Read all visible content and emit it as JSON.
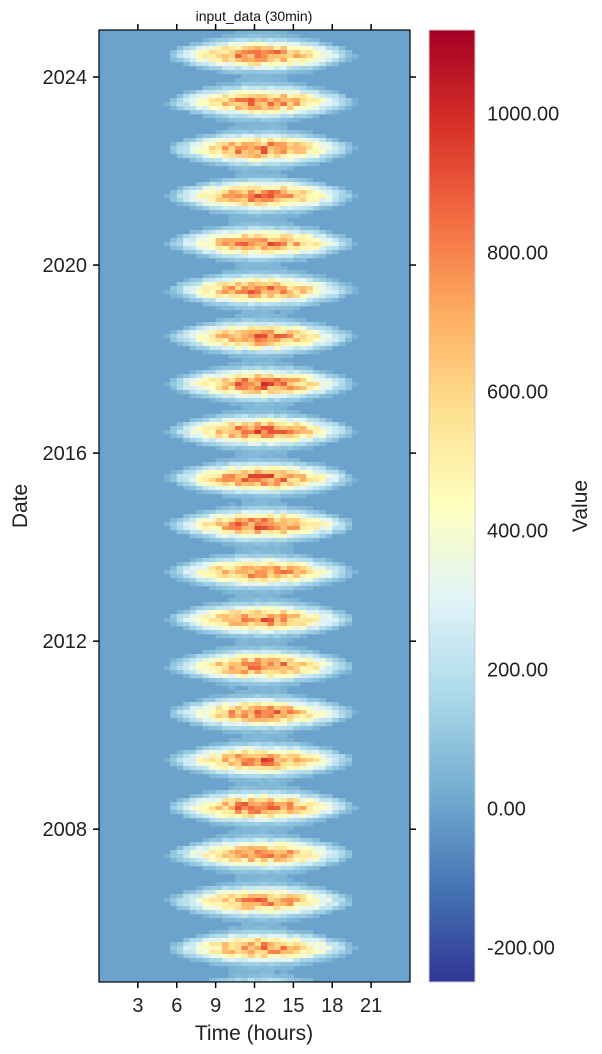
{
  "chart_data": {
    "type": "heatmap",
    "title": "input_data (30min)",
    "xlabel": "Time (hours)",
    "ylabel": "Date",
    "colorbar_label": "Value",
    "x_ticks": [
      3,
      6,
      9,
      12,
      15,
      18,
      21
    ],
    "x_tick_labels": [
      "3",
      "6",
      "9",
      "12",
      "15",
      "18",
      "21"
    ],
    "xlim": [
      0,
      24
    ],
    "y_ticks": [
      2008,
      2012,
      2016,
      2020,
      2024
    ],
    "y_tick_labels": [
      "2008",
      "2012",
      "2016",
      "2020",
      "2024"
    ],
    "ylim": [
      "2004-10-01",
      "2025-01-01"
    ],
    "colorbar_ticks": [
      -200,
      0,
      200,
      400,
      600,
      800,
      1000
    ],
    "colorbar_tick_labels": [
      "-200.00",
      "0.00",
      "200.00",
      "400.00",
      "600.00",
      "800.00",
      "1000.00"
    ],
    "vmin": -250,
    "vmax": 1120,
    "colormap": "RdYlBu_r",
    "colormap_stops": [
      "#313695",
      "#4575b4",
      "#74add1",
      "#abd9e9",
      "#e0f3f8",
      "#ffffbf",
      "#fee090",
      "#fdae61",
      "#f46d43",
      "#d73027",
      "#a50026"
    ],
    "background_value": 0,
    "summer_peaks": [
      {
        "year": 2005,
        "peak_value": 830
      },
      {
        "year": 2006,
        "peak_value": 930
      },
      {
        "year": 2007,
        "peak_value": 800
      },
      {
        "year": 2008,
        "peak_value": 950
      },
      {
        "year": 2009,
        "peak_value": 960
      },
      {
        "year": 2010,
        "peak_value": 880
      },
      {
        "year": 2011,
        "peak_value": 930
      },
      {
        "year": 2012,
        "peak_value": 950
      },
      {
        "year": 2013,
        "peak_value": 850
      },
      {
        "year": 2014,
        "peak_value": 950
      },
      {
        "year": 2015,
        "peak_value": 970
      },
      {
        "year": 2016,
        "peak_value": 920
      },
      {
        "year": 2017,
        "peak_value": 960
      },
      {
        "year": 2018,
        "peak_value": 950
      },
      {
        "year": 2019,
        "peak_value": 880
      },
      {
        "year": 2020,
        "peak_value": 930
      },
      {
        "year": 2021,
        "peak_value": 900
      },
      {
        "year": 2022,
        "peak_value": 980
      },
      {
        "year": 2023,
        "peak_value": 910
      },
      {
        "year": 2024,
        "peak_value": 930
      }
    ]
  }
}
